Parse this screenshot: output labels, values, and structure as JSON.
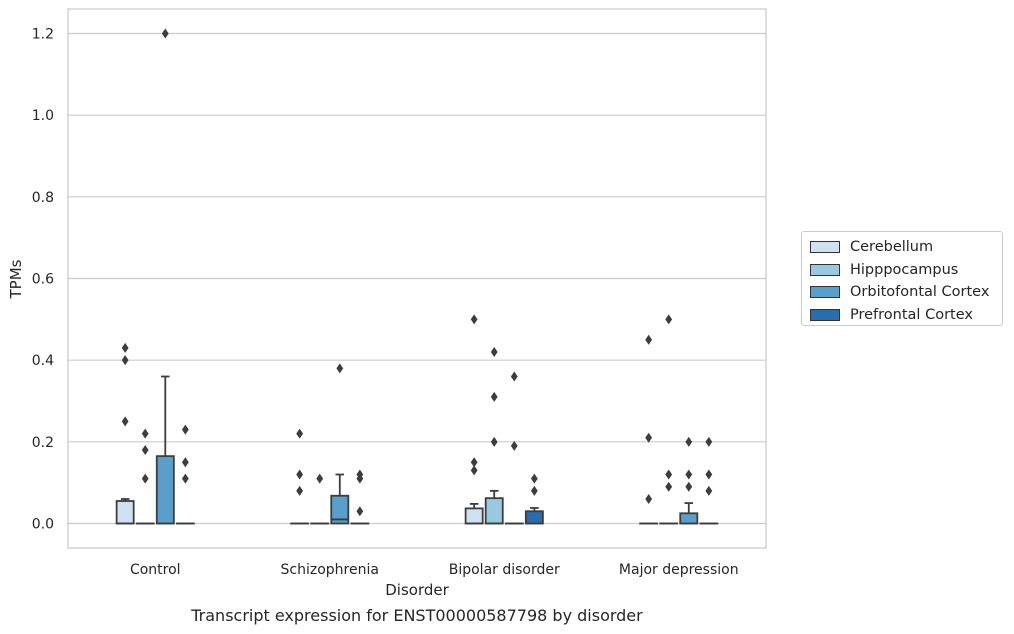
{
  "chart_data": {
    "type": "box",
    "caption": "Transcript expression for ENST00000587798 by disorder",
    "xlabel": "Disorder",
    "ylabel": "TPMs",
    "ylim": [
      -0.06,
      1.26
    ],
    "yticks": [
      0.0,
      0.2,
      0.4,
      0.6,
      0.8,
      1.0,
      1.2
    ],
    "grid": true,
    "legend_position": "right",
    "categories": [
      "Control",
      "Schizophrenia",
      "Bipolar disorder",
      "Major depression"
    ],
    "series": [
      {
        "name": "Cerebellum",
        "color": "#cfe1f2",
        "boxes": [
          {
            "q1": 0.0,
            "median": 0.0,
            "q3": 0.055,
            "whisker_low": 0.0,
            "whisker_high": 0.06,
            "outliers": [
              0.43,
              0.4,
              0.25
            ]
          },
          {
            "q1": 0.0,
            "median": 0.0,
            "q3": 0.0,
            "whisker_low": 0.0,
            "whisker_high": 0.0,
            "outliers": [
              0.22,
              0.12,
              0.08
            ]
          },
          {
            "q1": 0.0,
            "median": 0.0,
            "q3": 0.037,
            "whisker_low": 0.0,
            "whisker_high": 0.048,
            "outliers": [
              0.5,
              0.15,
              0.13
            ]
          },
          {
            "q1": 0.0,
            "median": 0.0,
            "q3": 0.0,
            "whisker_low": 0.0,
            "whisker_high": 0.0,
            "outliers": [
              0.45,
              0.21,
              0.06
            ]
          }
        ]
      },
      {
        "name": "Hipppocampus",
        "color": "#9ac8e0",
        "boxes": [
          {
            "q1": 0.0,
            "median": 0.0,
            "q3": 0.0,
            "whisker_low": 0.0,
            "whisker_high": 0.0,
            "outliers": [
              0.22,
              0.18,
              0.11
            ]
          },
          {
            "q1": 0.0,
            "median": 0.0,
            "q3": 0.0,
            "whisker_low": 0.0,
            "whisker_high": 0.0,
            "outliers": [
              0.11
            ]
          },
          {
            "q1": 0.0,
            "median": 0.0,
            "q3": 0.062,
            "whisker_low": 0.0,
            "whisker_high": 0.08,
            "outliers": [
              0.42,
              0.31,
              0.2
            ]
          },
          {
            "q1": 0.0,
            "median": 0.0,
            "q3": 0.0,
            "whisker_low": 0.0,
            "whisker_high": 0.0,
            "outliers": [
              0.5,
              0.12,
              0.09
            ]
          }
        ]
      },
      {
        "name": "Orbitofontal Cortex",
        "color": "#5a9ec9",
        "boxes": [
          {
            "q1": 0.0,
            "median": 0.0,
            "q3": 0.165,
            "whisker_low": 0.0,
            "whisker_high": 0.36,
            "outliers": [
              1.2
            ]
          },
          {
            "q1": 0.0,
            "median": 0.01,
            "q3": 0.068,
            "whisker_low": 0.0,
            "whisker_high": 0.12,
            "outliers": [
              0.38
            ]
          },
          {
            "q1": 0.0,
            "median": 0.0,
            "q3": 0.0,
            "whisker_low": 0.0,
            "whisker_high": 0.0,
            "outliers": [
              0.36,
              0.19
            ]
          },
          {
            "q1": 0.0,
            "median": 0.0,
            "q3": 0.025,
            "whisker_low": 0.0,
            "whisker_high": 0.05,
            "outliers": [
              0.2,
              0.12,
              0.09
            ]
          }
        ]
      },
      {
        "name": "Prefrontal Cortex",
        "color": "#2b6cac",
        "boxes": [
          {
            "q1": 0.0,
            "median": 0.0,
            "q3": 0.0,
            "whisker_low": 0.0,
            "whisker_high": 0.0,
            "outliers": [
              0.23,
              0.15,
              0.11
            ]
          },
          {
            "q1": 0.0,
            "median": 0.0,
            "q3": 0.0,
            "whisker_low": 0.0,
            "whisker_high": 0.0,
            "outliers": [
              0.12,
              0.11,
              0.03
            ]
          },
          {
            "q1": 0.0,
            "median": 0.0,
            "q3": 0.03,
            "whisker_low": 0.0,
            "whisker_high": 0.038,
            "outliers": [
              0.11,
              0.08
            ]
          },
          {
            "q1": 0.0,
            "median": 0.0,
            "q3": 0.0,
            "whisker_low": 0.0,
            "whisker_high": 0.0,
            "outliers": [
              0.2,
              0.12,
              0.08
            ]
          }
        ]
      }
    ]
  }
}
